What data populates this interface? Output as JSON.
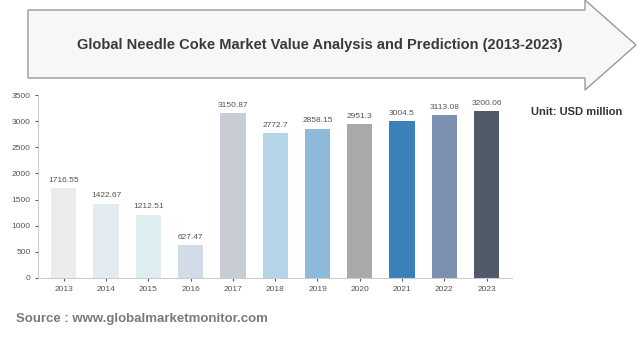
{
  "chart_data": {
    "type": "bar",
    "title": "Global Needle Coke Market Value Analysis and Prediction (2013-2023)",
    "unit_label": "Unit: USD million",
    "source": "Source : www.globalmarketmonitor.com",
    "categories": [
      "2013",
      "2014",
      "2015",
      "2016",
      "2017",
      "2018",
      "2019",
      "2020",
      "2021",
      "2022",
      "2023"
    ],
    "values": [
      1716.55,
      1422.67,
      1212.51,
      627.47,
      3150.87,
      2772.7,
      2858.15,
      2951.3,
      3004.5,
      3113.08,
      3200.06
    ],
    "colors": [
      "#ececec",
      "#e1ebf0",
      "#deedf0",
      "#d2dbe8",
      "#c8ccd5",
      "#b4d4e8",
      "#8fb9d8",
      "#a9a9a9",
      "#3b80b9",
      "#7b8fb1",
      "#4f5967"
    ],
    "ylim": [
      0,
      3500
    ],
    "yticks": [
      0,
      500,
      1000,
      1500,
      2000,
      2500,
      3000,
      3500
    ],
    "grid": false,
    "data_labels": true
  }
}
